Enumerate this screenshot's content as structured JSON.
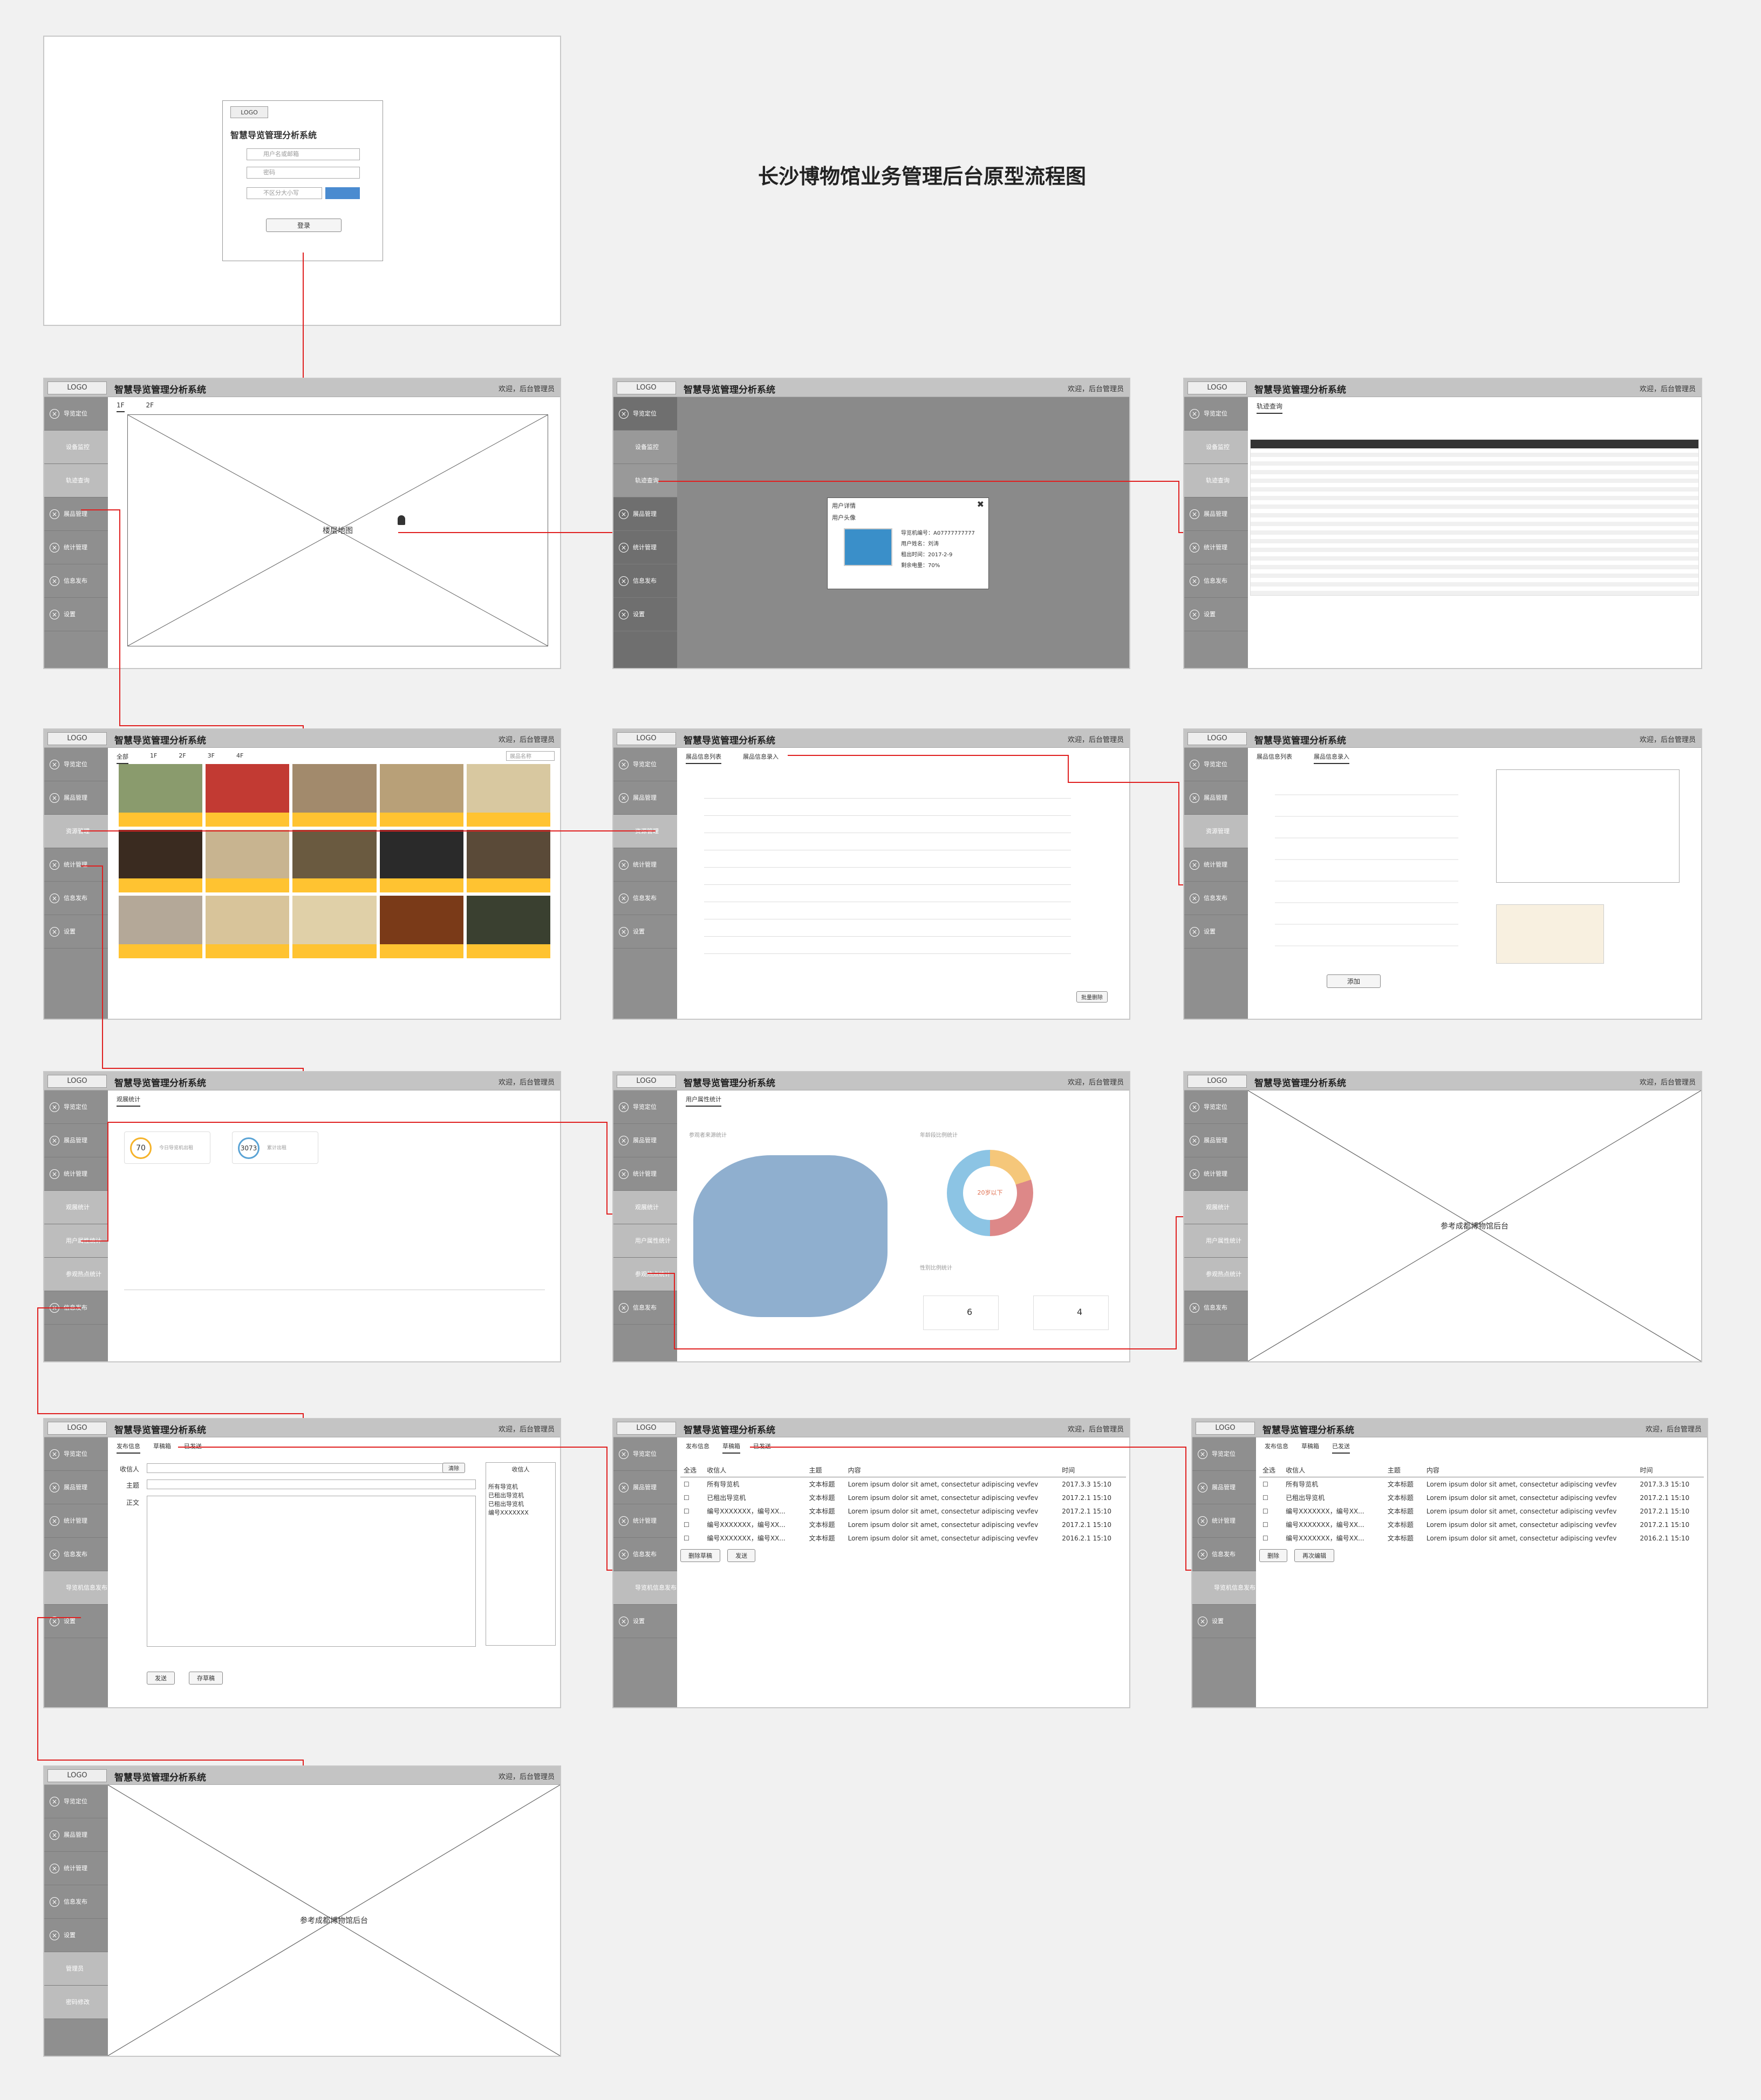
{
  "page_title": "长沙博物馆业务管理后台原型流程图",
  "app": {
    "logo": "LOGO",
    "title": "智慧导览管理分析系统",
    "user_short": "欢迎，后台管理员",
    "placeholder_label": "参考成都博物馆后台"
  },
  "login": {
    "title": "智慧导览管理分析系统",
    "username_placeholder": "用户名或邮箱",
    "password_placeholder": "密码",
    "captcha_placeholder": "不区分大小写",
    "submit": "登录"
  },
  "sidebar": {
    "position": "导览定位",
    "device": "设备监控",
    "track": "轨迹查询",
    "exhibit": "展品管理",
    "resource": "资源管理",
    "stats": "统计管理",
    "message": "信息发布",
    "settings": "设置",
    "visit_stats": "观展统计",
    "user_stats": "用户属性统计",
    "map_stats": "参观热点统计",
    "inbox": "导览机信息发布",
    "admin": "管理员",
    "password": "密码修改"
  },
  "floor_tabs": [
    "1F",
    "2F"
  ],
  "floor_map_label": "楼层地图",
  "user_popup": {
    "title": "用户详情",
    "subtitle": "用户头像",
    "fields": [
      "导览机编号：A07777777777",
      "用户姓名：刘涛",
      "租出时间：2017-2-9",
      "剩余电量：70%"
    ]
  },
  "track": {
    "tab": "轨迹查询",
    "headers": [
      "导览机编号",
      "领取时间",
      "归还时间",
      "姓名",
      "身份证号",
      "联系电话",
      "租借时长",
      "押金退还"
    ]
  },
  "exhibit": {
    "filters": [
      "全部",
      "1F",
      "2F",
      "3F",
      "4F"
    ],
    "search_placeholder": "展品名称"
  },
  "resource": {
    "tabs": [
      "展品信息列表",
      "展品信息录入"
    ],
    "batch_delete": "批量删除",
    "save": "添加"
  },
  "stats": {
    "tab": "观展统计",
    "kpi1": "70",
    "kpi1_label": "今日导览机出租",
    "kpi2": "3073",
    "kpi2_label": "累计出租"
  },
  "user_stats": {
    "tab": "用户属性统计",
    "map_title": "参观者来源统计",
    "donut_title": "年龄段比例统计",
    "donut_center": "20岁以下",
    "gender_title": "性别比例统计",
    "male": "6",
    "female": "4"
  },
  "message": {
    "tabs": [
      "发布信息",
      "草稿箱",
      "已发送"
    ],
    "receiver_label": "收信人",
    "subject_label": "主题",
    "body_label": "正文",
    "clear": "清除",
    "send": "发送",
    "save_draft": "存草稿",
    "delete_draft": "删除草稿",
    "delete": "删除",
    "edit_again": "再次编辑",
    "panel_title": "收信人",
    "panel_items": [
      "所有导览机",
      "已租出导览机",
      "已租出导览机",
      "编号XXXXXXX"
    ],
    "table_headers": [
      "全选",
      "收信人",
      "主题",
      "内容",
      "时间"
    ],
    "rows": [
      {
        "to": "所有导览机",
        "subject": "文本标题",
        "body": "Lorem ipsum dolor sit amet, consectetur adipiscing vevfev",
        "time": "2017.3.3  15:10"
      },
      {
        "to": "已租出导览机",
        "subject": "文本标题",
        "body": "Lorem ipsum dolor sit amet, consectetur adipiscing vevfev",
        "time": "2017.2.1  15:10"
      },
      {
        "to": "编号XXXXXXX，编号XX...",
        "subject": "文本标题",
        "body": "Lorem ipsum dolor sit amet, consectetur adipiscing vevfev",
        "time": "2017.2.1  15:10"
      },
      {
        "to": "编号XXXXXXX，编号XX...",
        "subject": "文本标题",
        "body": "Lorem ipsum dolor sit amet, consectetur adipiscing vevfev",
        "time": "2017.2.1  15:10"
      },
      {
        "to": "编号XXXXXXX，编号XX...",
        "subject": "文本标题",
        "body": "Lorem ipsum dolor sit amet, consectetur adipiscing vevfev",
        "time": "2016.2.1  15:10"
      }
    ]
  }
}
